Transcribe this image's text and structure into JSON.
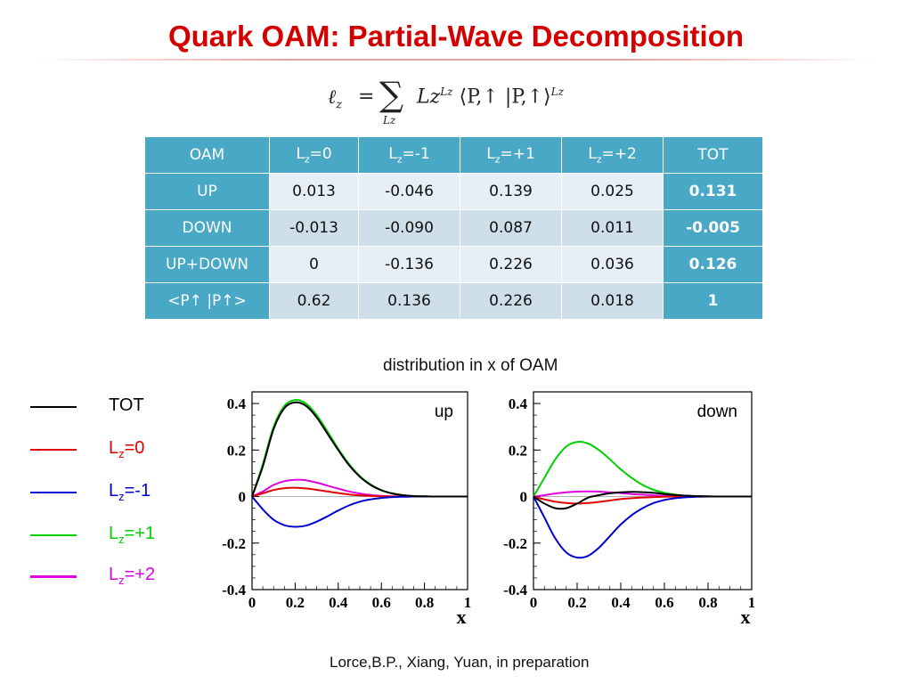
{
  "title": "Quark OAM: Partial-Wave Decomposition",
  "formula": {
    "lhs": "ℓ",
    "lhs_sub": "z",
    "equals": "=",
    "sum": "∑",
    "sum_sub": "Lz",
    "term": "Lz",
    "term_sup": "Lz",
    "bracket": "⟨P,↑ |P,↑⟩",
    "bracket_sup": "Lz"
  },
  "table": {
    "headers": [
      {
        "main": "OAM",
        "sub": "",
        "tail": ""
      },
      {
        "main": "L",
        "sub": "z",
        "tail": "=0"
      },
      {
        "main": "L",
        "sub": "z",
        "tail": "=-1"
      },
      {
        "main": "L",
        "sub": "z",
        "tail": "=+1"
      },
      {
        "main": "L",
        "sub": "z",
        "tail": "=+2"
      },
      {
        "main": "TOT",
        "sub": "",
        "tail": ""
      }
    ],
    "rows": [
      {
        "label": "UP",
        "cells": [
          "0.013",
          "-0.046",
          "0.139",
          "0.025",
          "0.131"
        ]
      },
      {
        "label": "DOWN",
        "cells": [
          "-0.013",
          "-0.090",
          "0.087",
          "0.011",
          "-0.005"
        ]
      },
      {
        "label": "UP+DOWN",
        "cells": [
          "0",
          "-0.136",
          "0.226",
          "0.036",
          "0.126"
        ]
      },
      {
        "label": "<P↑ |P↑>",
        "cells": [
          "0.62",
          "0.136",
          "0.226",
          "0.018",
          "1"
        ]
      }
    ]
  },
  "distribution_title": "distribution in x of OAM",
  "legend": [
    {
      "main": "TOT",
      "sub": "",
      "tail": "",
      "color": "#000000"
    },
    {
      "main": "L",
      "sub": "z",
      "tail": "=0",
      "color": "#e00000"
    },
    {
      "main": "L",
      "sub": "z",
      "tail": "=-1",
      "color": "#0000d0"
    },
    {
      "main": "L",
      "sub": "z",
      "tail": "=+1",
      "color": "#00d000"
    },
    {
      "main": "L",
      "sub": "z",
      "tail": "=+2",
      "color": "#e000e0"
    }
  ],
  "chart_data": [
    {
      "type": "line",
      "panel_label": "up",
      "xlabel": "x",
      "xlim": [
        0,
        1
      ],
      "ylim": [
        -0.4,
        0.45
      ],
      "xticks": [
        "0",
        "0.2",
        "0.4",
        "0.6",
        "0.8",
        "1"
      ],
      "yticks": [
        "-0.4",
        "-0.2",
        "0",
        "0.2",
        "0.4"
      ],
      "x": [
        0,
        0.05,
        0.1,
        0.15,
        0.2,
        0.25,
        0.3,
        0.35,
        0.4,
        0.45,
        0.5,
        0.55,
        0.6,
        0.65,
        0.7,
        0.75,
        0.8,
        0.85,
        0.9,
        1.0
      ],
      "series": [
        {
          "name": "TOT",
          "color": "#000000",
          "values": [
            0,
            0.13,
            0.29,
            0.38,
            0.405,
            0.39,
            0.34,
            0.27,
            0.2,
            0.135,
            0.085,
            0.05,
            0.027,
            0.013,
            0.006,
            0.002,
            0.001,
            0,
            0,
            0
          ]
        },
        {
          "name": "L=0",
          "color": "#e00000",
          "values": [
            0,
            0.014,
            0.028,
            0.036,
            0.038,
            0.035,
            0.029,
            0.022,
            0.015,
            0.009,
            0.005,
            0.003,
            0.001,
            0,
            0,
            0,
            0,
            0,
            0,
            0
          ]
        },
        {
          "name": "L=-1",
          "color": "#0000d0",
          "values": [
            0,
            -0.055,
            -0.1,
            -0.123,
            -0.13,
            -0.125,
            -0.108,
            -0.085,
            -0.06,
            -0.038,
            -0.022,
            -0.012,
            -0.006,
            -0.002,
            -0.001,
            0,
            0,
            0,
            0,
            0
          ]
        },
        {
          "name": "L=+1",
          "color": "#00d000",
          "values": [
            0,
            0.14,
            0.3,
            0.39,
            0.415,
            0.4,
            0.35,
            0.28,
            0.205,
            0.14,
            0.088,
            0.052,
            0.028,
            0.014,
            0.006,
            0.002,
            0.001,
            0,
            0,
            0
          ]
        },
        {
          "name": "L=+2",
          "color": "#e000e0",
          "values": [
            0,
            0.022,
            0.05,
            0.066,
            0.072,
            0.07,
            0.06,
            0.047,
            0.034,
            0.022,
            0.013,
            0.007,
            0.003,
            0.001,
            0,
            0,
            0,
            0,
            0,
            0
          ]
        }
      ]
    },
    {
      "type": "line",
      "panel_label": "down",
      "xlabel": "x",
      "xlim": [
        0,
        1
      ],
      "ylim": [
        -0.4,
        0.45
      ],
      "xticks": [
        "0",
        "0.2",
        "0.4",
        "0.6",
        "0.8",
        "1"
      ],
      "yticks": [
        "-0.4",
        "-0.2",
        "0",
        "0.2",
        "0.4"
      ],
      "x": [
        0,
        0.05,
        0.1,
        0.15,
        0.2,
        0.25,
        0.3,
        0.35,
        0.4,
        0.45,
        0.5,
        0.55,
        0.6,
        0.65,
        0.7,
        0.75,
        0.8,
        0.85,
        0.9,
        1.0
      ],
      "series": [
        {
          "name": "TOT",
          "color": "#000000",
          "values": [
            0,
            -0.03,
            -0.05,
            -0.05,
            -0.03,
            -0.005,
            0.006,
            0.014,
            0.018,
            0.02,
            0.019,
            0.016,
            0.011,
            0.007,
            0.004,
            0.002,
            0.001,
            0,
            0,
            0
          ]
        },
        {
          "name": "L=0",
          "color": "#e00000",
          "values": [
            0,
            -0.012,
            -0.022,
            -0.028,
            -0.03,
            -0.028,
            -0.023,
            -0.017,
            -0.011,
            -0.007,
            -0.004,
            -0.002,
            -0.001,
            0,
            0,
            0,
            0,
            0,
            0,
            0
          ]
        },
        {
          "name": "L=-1",
          "color": "#0000d0",
          "values": [
            0,
            -0.09,
            -0.18,
            -0.24,
            -0.262,
            -0.255,
            -0.22,
            -0.17,
            -0.12,
            -0.08,
            -0.05,
            -0.028,
            -0.015,
            -0.007,
            -0.003,
            -0.001,
            0,
            0,
            0,
            0
          ]
        },
        {
          "name": "L=+1",
          "color": "#00d000",
          "values": [
            0,
            0.08,
            0.16,
            0.215,
            0.235,
            0.228,
            0.2,
            0.16,
            0.117,
            0.08,
            0.05,
            0.029,
            0.016,
            0.008,
            0.003,
            0.001,
            0,
            0,
            0,
            0
          ]
        },
        {
          "name": "L=+2",
          "color": "#e000e0",
          "values": [
            0,
            0.006,
            0.013,
            0.018,
            0.021,
            0.022,
            0.021,
            0.018,
            0.015,
            0.011,
            0.008,
            0.005,
            0.003,
            0.001,
            0,
            0,
            0,
            0,
            0,
            0
          ]
        }
      ]
    }
  ],
  "citation": "Lorce,B.P., Xiang, Yuan, in preparation"
}
